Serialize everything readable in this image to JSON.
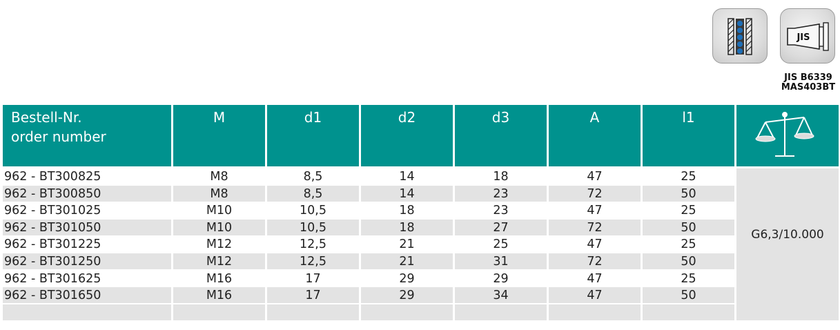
{
  "icons": [
    {
      "name": "balanced-collet-icon"
    },
    {
      "name": "jis-taper-icon",
      "label": "JIS"
    }
  ],
  "standard": {
    "line1": "JIS B6339",
    "line2": "MAS403BT"
  },
  "table": {
    "headers": {
      "order_line1": "Bestell-Nr.",
      "order_line2": "order number",
      "m": "M",
      "d1": "d1",
      "d2": "d2",
      "d3": "d3",
      "a": "A",
      "l1": "l1",
      "balance_icon": "balance-scale-icon"
    },
    "rows": [
      {
        "order": "962 - BT300825",
        "m": "M8",
        "d1": "8,5",
        "d2": "14",
        "d3": "18",
        "a": "47",
        "l1": "25"
      },
      {
        "order": "962 - BT300850",
        "m": "M8",
        "d1": "8,5",
        "d2": "14",
        "d3": "23",
        "a": "72",
        "l1": "50"
      },
      {
        "order": "962 - BT301025",
        "m": "M10",
        "d1": "10,5",
        "d2": "18",
        "d3": "23",
        "a": "47",
        "l1": "25"
      },
      {
        "order": "962 - BT301050",
        "m": "M10",
        "d1": "10,5",
        "d2": "18",
        "d3": "27",
        "a": "72",
        "l1": "50"
      },
      {
        "order": "962 - BT301225",
        "m": "M12",
        "d1": "12,5",
        "d2": "21",
        "d3": "25",
        "a": "47",
        "l1": "25"
      },
      {
        "order": "962 - BT301250",
        "m": "M12",
        "d1": "12,5",
        "d2": "21",
        "d3": "31",
        "a": "72",
        "l1": "50"
      },
      {
        "order": "962 - BT301625",
        "m": "M16",
        "d1": "17",
        "d2": "29",
        "d3": "29",
        "a": "47",
        "l1": "25"
      },
      {
        "order": "962 - BT301650",
        "m": "M16",
        "d1": "17",
        "d2": "29",
        "d3": "34",
        "a": "47",
        "l1": "50"
      },
      {
        "order": "",
        "m": "",
        "d1": "",
        "d2": "",
        "d3": "",
        "a": "",
        "l1": ""
      }
    ],
    "balance_value": "G6,3/10.000"
  },
  "colors": {
    "header_bg": "#00928e",
    "row_shade": "#e3e3e3"
  }
}
